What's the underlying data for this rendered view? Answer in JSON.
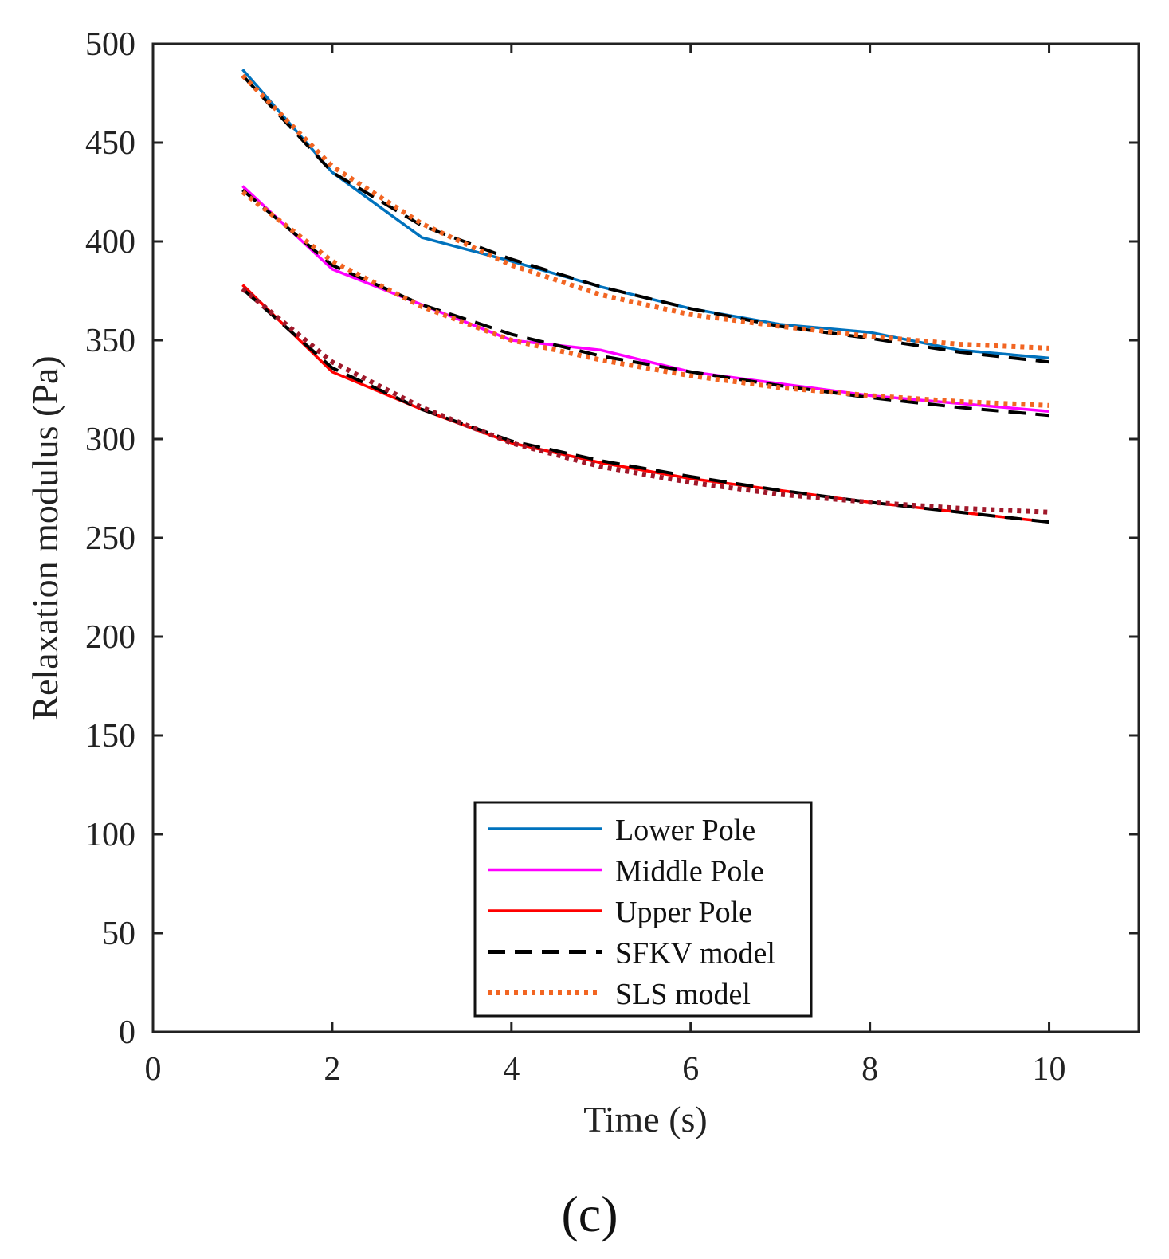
{
  "chart_data": {
    "type": "line",
    "title": "",
    "xlabel": "Time (s)",
    "ylabel": "Relaxation modulus (Pa)",
    "xlim": [
      0,
      11
    ],
    "ylim": [
      0,
      500
    ],
    "xticks": [
      0,
      2,
      4,
      6,
      8,
      10
    ],
    "yticks": [
      0,
      50,
      100,
      150,
      200,
      250,
      300,
      350,
      400,
      450,
      500
    ],
    "grid": false,
    "legend_position": "bottom-center",
    "panel_label": "(c)",
    "x": [
      1,
      2,
      3,
      4,
      5,
      6,
      7,
      8,
      9,
      10
    ],
    "series": [
      {
        "name": "Lower Pole",
        "key": "lower",
        "style": "solid",
        "color": "#0072BD",
        "values": [
          487,
          435,
          402,
          390,
          377,
          366,
          358,
          354,
          345,
          341
        ]
      },
      {
        "name": "Middle Pole",
        "key": "middle",
        "style": "solid",
        "color": "#FF00FF",
        "values": [
          428,
          386,
          368,
          350,
          345,
          334,
          328,
          322,
          318,
          314
        ]
      },
      {
        "name": "Upper Pole",
        "key": "upper",
        "style": "solid",
        "color": "#FF0000",
        "values": [
          378,
          334,
          315,
          298,
          288,
          280,
          274,
          268,
          263,
          258
        ]
      },
      {
        "name": "SFKV model",
        "key": "sfkv",
        "style": "dashed",
        "color": "#000000",
        "in_legend": true,
        "fits": [
          [
            484,
            435,
            408,
            391,
            377,
            366,
            357,
            351,
            344,
            339
          ],
          [
            426,
            388,
            368,
            353,
            342,
            334,
            327,
            321,
            316,
            312
          ],
          [
            376,
            336,
            315,
            299,
            289,
            281,
            274,
            268,
            263,
            258
          ]
        ]
      },
      {
        "name": "SLS model",
        "key": "sls",
        "style": "dotted",
        "color": "#F26522",
        "in_legend": true,
        "fits": [
          [
            484,
            438,
            409,
            388,
            373,
            363,
            357,
            352,
            348,
            346
          ],
          [
            425,
            390,
            367,
            350,
            340,
            332,
            326,
            322,
            319,
            317
          ]
        ]
      },
      {
        "name": "",
        "key": "sls-upper",
        "style": "dotted",
        "color": "#A0182A",
        "in_legend": false,
        "values": [
          376,
          339,
          316,
          298,
          286,
          278,
          272,
          268,
          265,
          263
        ]
      }
    ]
  }
}
